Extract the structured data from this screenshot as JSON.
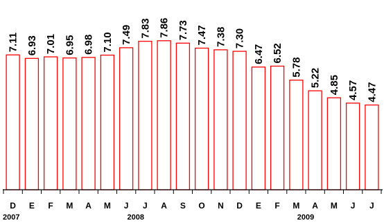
{
  "chart_data": {
    "type": "bar",
    "categories": [
      "D",
      "E",
      "F",
      "M",
      "A",
      "M",
      "J",
      "J",
      "A",
      "S",
      "O",
      "N",
      "D",
      "E",
      "F",
      "M",
      "A",
      "M",
      "J",
      "J"
    ],
    "values": [
      "7.11",
      "6.93",
      "7.01",
      "6.95",
      "6.98",
      "7.10",
      "7.49",
      "7.83",
      "7.86",
      "7.73",
      "7.47",
      "7.38",
      "7.30",
      "6.47",
      "6.52",
      "5.78",
      "5.22",
      "4.85",
      "4.57",
      "4.47"
    ],
    "year_labels": [
      {
        "text": "2007",
        "index": 0
      },
      {
        "text": "2008",
        "index": 6.5
      },
      {
        "text": "2009",
        "index": 15.5
      }
    ],
    "title": "",
    "xlabel": "",
    "ylabel": "",
    "ylim": [
      0,
      8.4
    ],
    "grid": false,
    "colors": {
      "bar_stroke": "#ff0000",
      "bar_fill": "#ffffff"
    }
  }
}
